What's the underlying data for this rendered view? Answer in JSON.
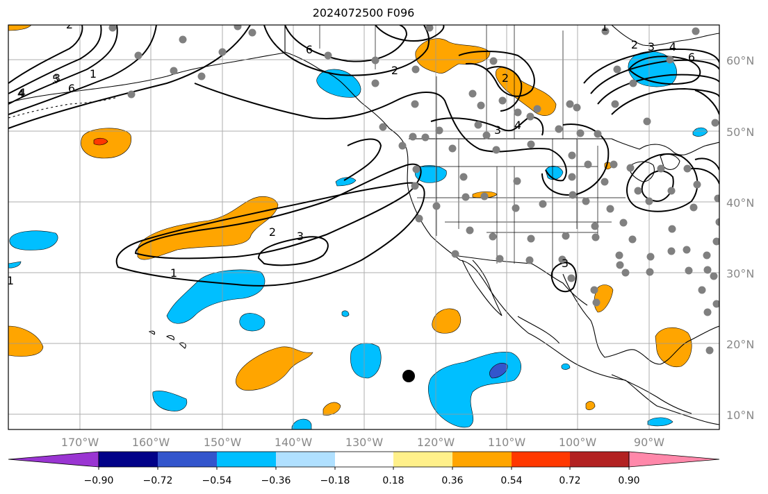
{
  "title": "2024072500 F096",
  "lon_labels": [
    "170°W",
    "160°W",
    "150°W",
    "140°W",
    "130°W",
    "120°W",
    "110°W",
    "100°W",
    "90°W"
  ],
  "lat_labels": [
    "60°N",
    "50°N",
    "40°N",
    "30°N",
    "20°N",
    "10°N"
  ],
  "colorbar": {
    "ticks": [
      "−0.90",
      "−0.72",
      "−0.54",
      "−0.36",
      "−0.18",
      "0.18",
      "0.36",
      "0.54",
      "0.72",
      "0.90"
    ],
    "colors": [
      "#9a35d2",
      "#020288",
      "#3355cc",
      "#00bfff",
      "#b0e0ff",
      "#ffffff",
      "#fff08a",
      "#ffa500",
      "#ff3800",
      "#b22222",
      "#ff88aa"
    ]
  },
  "contour_labels": [
    "1",
    "2",
    "3",
    "4",
    "5",
    "6",
    "1",
    "2",
    "3",
    "4",
    "6",
    "2",
    "3",
    "4",
    "6",
    "4",
    "3",
    "2",
    "2",
    "3",
    "1",
    "1"
  ],
  "colors": {
    "positive": "#ffa500",
    "negative": "#00bfff",
    "strong_negative": "#3355cc",
    "strong_positive": "#ff3800",
    "station": "#808080",
    "grid": "#999999"
  }
}
